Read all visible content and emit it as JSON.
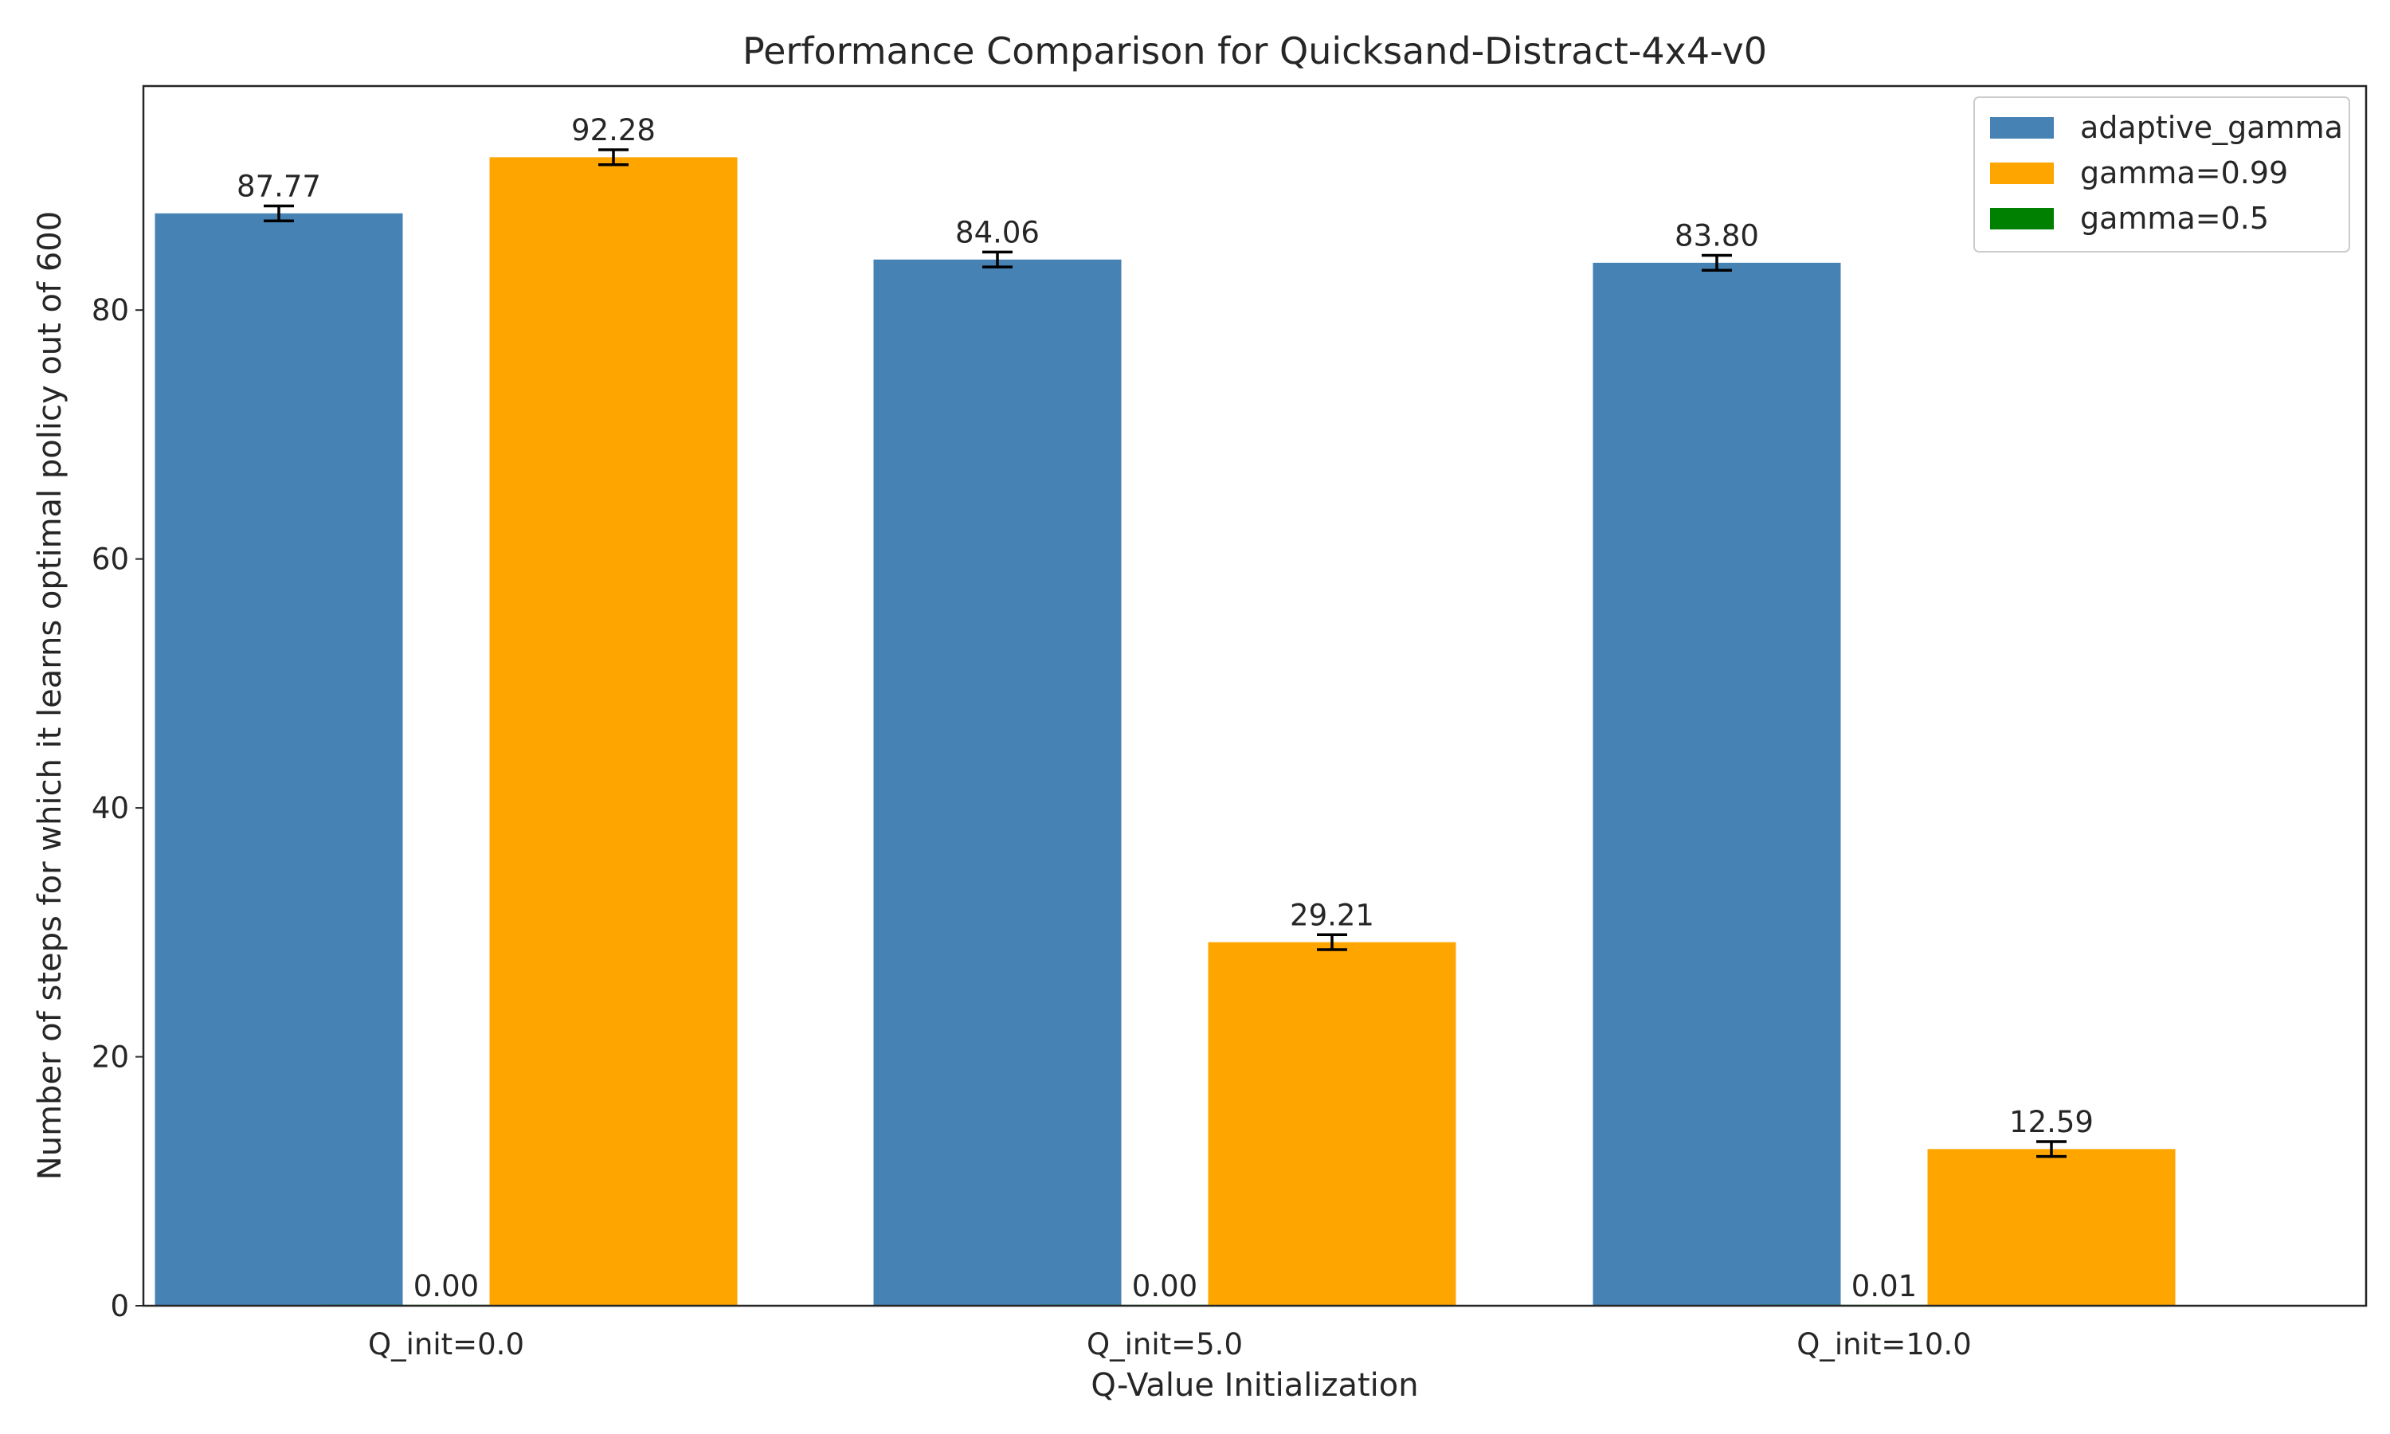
{
  "chart_data": {
    "type": "bar",
    "title": "Performance Comparison for Quicksand-Distract-4x4-v0",
    "xlabel": "Q-Value Initialization",
    "ylabel": "Number of steps for which it learns optimal policy out of 600",
    "categories": [
      "Q_init=0.0",
      "Q_init=5.0",
      "Q_init=10.0"
    ],
    "ylim": [
      0,
      98
    ],
    "yticks": [
      0,
      20,
      40,
      60,
      80
    ],
    "grid": false,
    "legend_position": "top-right",
    "series": [
      {
        "name": "adaptive_gamma",
        "color": "#4682b4",
        "values": [
          87.77,
          84.06,
          83.8
        ],
        "labels": [
          "87.77",
          "84.06",
          "83.80"
        ],
        "errors": [
          0.6,
          0.6,
          0.6
        ]
      },
      {
        "name": "gamma=0.5",
        "color": "#008000",
        "values": [
          0.0,
          0.0,
          0.01
        ],
        "labels": [
          "0.00",
          "0.00",
          "0.01"
        ],
        "errors": [
          0,
          0,
          0
        ]
      },
      {
        "name": "gamma=0.99",
        "color": "#ffa500",
        "values": [
          92.28,
          29.21,
          12.59
        ],
        "labels": [
          "92.28",
          "29.21",
          "12.59"
        ],
        "errors": [
          0.6,
          0.6,
          0.6
        ]
      }
    ],
    "legend_order": [
      "adaptive_gamma",
      "gamma=0.99",
      "gamma=0.5"
    ]
  }
}
